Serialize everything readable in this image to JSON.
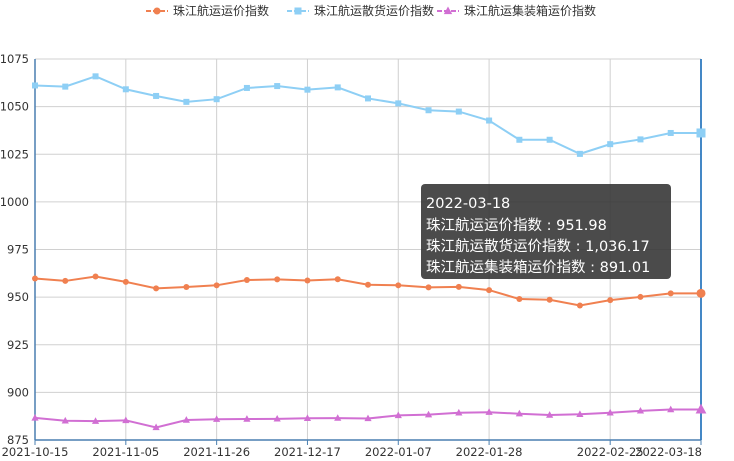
{
  "chart_data": {
    "type": "line",
    "x": [
      "2021-10-15",
      "2021-10-22",
      "2021-10-29",
      "2021-11-05",
      "2021-11-12",
      "2021-11-19",
      "2021-11-26",
      "2021-12-03",
      "2021-12-10",
      "2021-12-17",
      "2021-12-24",
      "2021-12-31",
      "2022-01-07",
      "2022-01-14",
      "2022-01-21",
      "2022-01-28",
      "2022-02-04",
      "2022-02-11",
      "2022-02-18",
      "2022-02-25",
      "2022-03-04",
      "2022-03-11",
      "2022-03-18"
    ],
    "x_tick_labels": [
      "2021-10-15",
      "2021-11-05",
      "2021-11-26",
      "2021-12-17",
      "2022-01-07",
      "2022-01-28",
      "2022-02-25",
      "2022-03-18"
    ],
    "ylim": [
      875,
      1075
    ],
    "y_ticks": [
      875,
      900,
      925,
      950,
      975,
      1000,
      1025,
      1050,
      1075
    ],
    "grid": true,
    "legend_position": "top-center",
    "series": [
      {
        "name": "珠江航运运价指数",
        "color": "#f08050",
        "marker": "circle",
        "values": [
          959.8,
          958.5,
          960.8,
          958.0,
          954.6,
          955.3,
          956.2,
          959.0,
          959.3,
          958.7,
          959.4,
          956.5,
          956.2,
          955.1,
          955.4,
          953.7,
          949.0,
          948.6,
          945.6,
          948.4,
          950.1,
          951.98,
          951.98
        ]
      },
      {
        "name": "珠江航运散货运价指数",
        "color": "#8ecff5",
        "marker": "square",
        "values": [
          1061.1,
          1060.5,
          1065.9,
          1059.1,
          1055.6,
          1052.5,
          1053.9,
          1059.8,
          1060.8,
          1058.9,
          1060.1,
          1054.3,
          1051.7,
          1048.1,
          1047.4,
          1042.7,
          1032.6,
          1032.6,
          1025.2,
          1030.3,
          1032.8,
          1036.17,
          1036.17
        ]
      },
      {
        "name": "珠江航运集装箱运价指数",
        "color": "#d16fd3",
        "marker": "triangle",
        "values": [
          886.6,
          885.1,
          884.9,
          885.3,
          881.6,
          885.5,
          885.9,
          886.0,
          886.1,
          886.4,
          886.5,
          886.3,
          887.9,
          888.3,
          889.3,
          889.6,
          888.8,
          888.1,
          888.5,
          889.3,
          890.3,
          891.01,
          891.01
        ]
      }
    ]
  },
  "tooltip": {
    "date": "2022-03-18",
    "rows": [
      {
        "label": "珠江航运运价指数",
        "value": "951.98"
      },
      {
        "label": "珠江航运散货运价指数",
        "value": "1,036.17"
      },
      {
        "label": "珠江航运集装箱运价指数",
        "value": "891.01"
      }
    ]
  }
}
